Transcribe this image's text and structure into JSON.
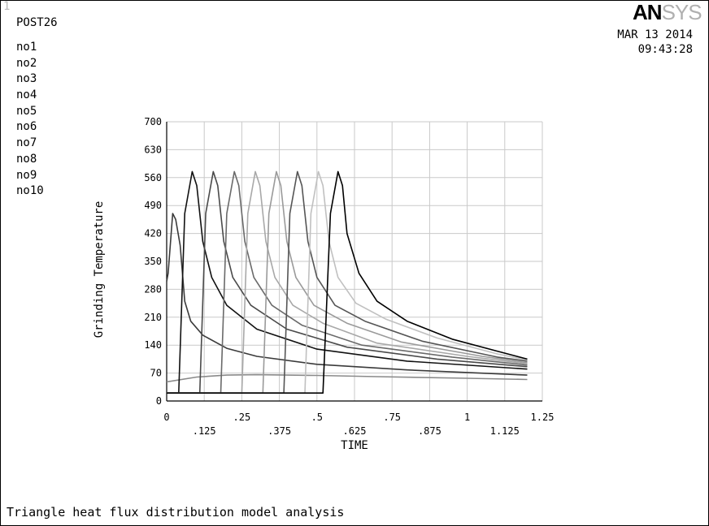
{
  "window_number": "1",
  "post_title": "POST26",
  "logo": {
    "bold": "AN",
    "light": "SYS"
  },
  "date": "MAR 13 2014",
  "time": "09:43:28",
  "caption": "Triangle heat flux distribution model analysis",
  "colors": {
    "grid": "#c9c9c9",
    "series": [
      "#8a8a8a",
      "#3a3a3a",
      "#111111",
      "#4a4a4a",
      "#6a6a6a",
      "#a8a8a8",
      "#9a9a9a",
      "#555555",
      "#c0c0c0",
      "#000000"
    ]
  },
  "chart_data": {
    "type": "line",
    "title": "",
    "xlabel": "TIME",
    "ylabel": "Grinding Temperature",
    "xlim": [
      0,
      1.25
    ],
    "ylim": [
      0,
      700
    ],
    "grid": true,
    "legend_position": "top-left",
    "x_ticks_row1": [
      "0",
      ".25",
      ".5",
      ".75",
      "1",
      "1.25"
    ],
    "x_ticks_row2": [
      ".125",
      ".375",
      ".625",
      ".875",
      "1.125"
    ],
    "y_ticks": [
      "0",
      "70",
      "140",
      "210",
      "280",
      "350",
      "420",
      "490",
      "560",
      "630",
      "700"
    ],
    "series": [
      {
        "name": "no1",
        "x": [
          0,
          0.1,
          0.2,
          0.3,
          0.5,
          0.7,
          1.0,
          1.2
        ],
        "y": [
          48,
          60,
          65,
          66,
          64,
          61,
          57,
          54
        ]
      },
      {
        "name": "no2",
        "x": [
          0,
          0.005,
          0.02,
          0.03,
          0.045,
          0.06,
          0.08,
          0.12,
          0.2,
          0.3,
          0.5,
          0.8,
          1.2
        ],
        "y": [
          300,
          320,
          470,
          455,
          390,
          250,
          200,
          165,
          132,
          112,
          92,
          78,
          65
        ]
      },
      {
        "name": "no3",
        "x": [
          0,
          0.04,
          0.06,
          0.085,
          0.1,
          0.12,
          0.15,
          0.2,
          0.3,
          0.5,
          0.8,
          1.2
        ],
        "y": [
          20,
          20,
          470,
          575,
          540,
          400,
          310,
          240,
          180,
          130,
          100,
          80
        ]
      },
      {
        "name": "no4",
        "x": [
          0,
          0.11,
          0.13,
          0.155,
          0.17,
          0.19,
          0.22,
          0.28,
          0.4,
          0.6,
          0.9,
          1.2
        ],
        "y": [
          20,
          20,
          470,
          575,
          540,
          400,
          310,
          240,
          180,
          135,
          105,
          86
        ]
      },
      {
        "name": "no5",
        "x": [
          0,
          0.18,
          0.2,
          0.225,
          0.24,
          0.26,
          0.29,
          0.35,
          0.45,
          0.65,
          0.95,
          1.2
        ],
        "y": [
          20,
          20,
          470,
          575,
          540,
          400,
          310,
          240,
          190,
          140,
          110,
          90
        ]
      },
      {
        "name": "no6",
        "x": [
          0,
          0.25,
          0.27,
          0.295,
          0.31,
          0.33,
          0.36,
          0.42,
          0.52,
          0.7,
          1.0,
          1.2
        ],
        "y": [
          20,
          20,
          470,
          575,
          540,
          400,
          310,
          240,
          195,
          145,
          112,
          93
        ]
      },
      {
        "name": "no7",
        "x": [
          0,
          0.32,
          0.34,
          0.365,
          0.38,
          0.4,
          0.43,
          0.49,
          0.6,
          0.78,
          1.05,
          1.2
        ],
        "y": [
          20,
          20,
          470,
          575,
          540,
          400,
          310,
          240,
          195,
          148,
          112,
          96
        ]
      },
      {
        "name": "no8",
        "x": [
          0,
          0.39,
          0.41,
          0.435,
          0.45,
          0.47,
          0.5,
          0.56,
          0.66,
          0.85,
          1.1,
          1.2
        ],
        "y": [
          20,
          20,
          470,
          575,
          540,
          400,
          310,
          240,
          200,
          150,
          110,
          100
        ]
      },
      {
        "name": "no9",
        "x": [
          0,
          0.46,
          0.48,
          0.505,
          0.52,
          0.54,
          0.57,
          0.63,
          0.73,
          0.9,
          1.1,
          1.2
        ],
        "y": [
          20,
          20,
          470,
          575,
          540,
          400,
          310,
          245,
          205,
          158,
          118,
          103
        ]
      },
      {
        "name": "no10",
        "x": [
          0,
          0.52,
          0.545,
          0.57,
          0.585,
          0.6,
          0.64,
          0.7,
          0.8,
          0.95,
          1.1,
          1.2
        ],
        "y": [
          20,
          20,
          470,
          575,
          540,
          420,
          320,
          250,
          200,
          155,
          125,
          105
        ]
      }
    ]
  }
}
